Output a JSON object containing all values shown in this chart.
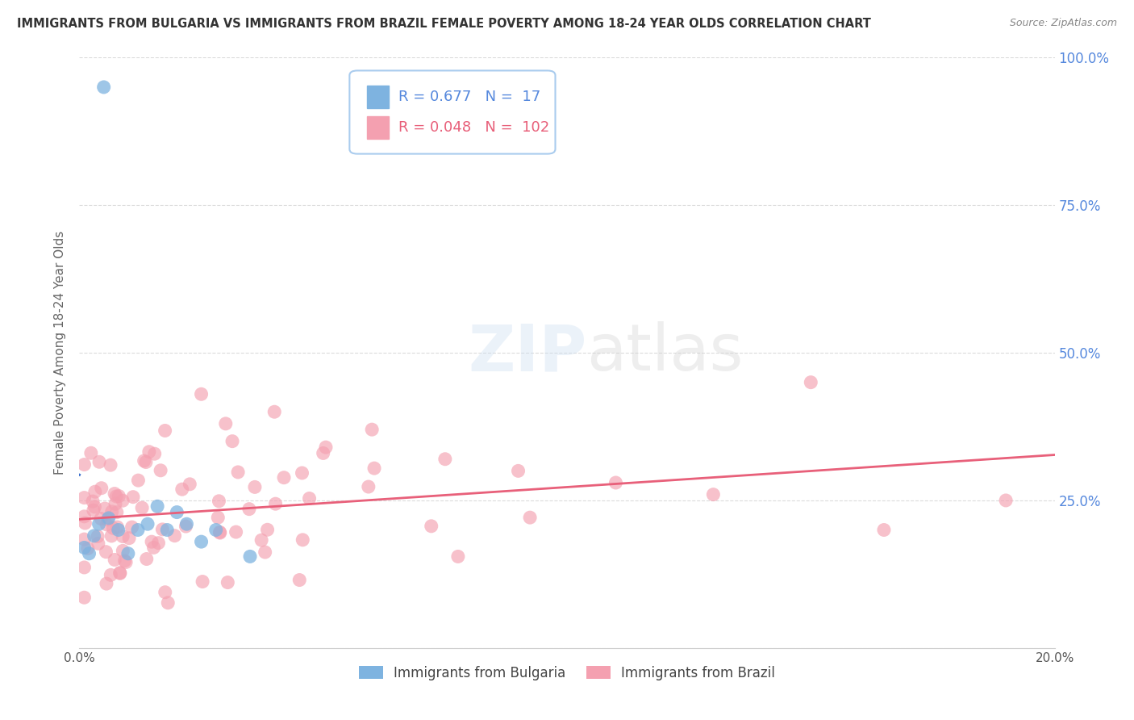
{
  "title": "IMMIGRANTS FROM BULGARIA VS IMMIGRANTS FROM BRAZIL FEMALE POVERTY AMONG 18-24 YEAR OLDS CORRELATION CHART",
  "source": "Source: ZipAtlas.com",
  "ylabel": "Female Poverty Among 18-24 Year Olds",
  "xlim": [
    0.0,
    0.2
  ],
  "ylim": [
    0.0,
    1.0
  ],
  "R_bulgaria": 0.677,
  "N_bulgaria": 17,
  "R_brazil": 0.048,
  "N_brazil": 102,
  "color_bulgaria": "#7EB3E0",
  "color_brazil": "#F4A0B0",
  "color_line_bulgaria": "#3B6FCC",
  "color_line_brazil": "#E8607A",
  "legend_label_bulgaria": "Immigrants from Bulgaria",
  "legend_label_brazil": "Immigrants from Brazil",
  "watermark": "ZIPatlas",
  "bg_color": "#FFFFFF",
  "grid_color": "#CCCCCC",
  "title_color": "#333333",
  "source_color": "#888888",
  "right_axis_color": "#5588DD",
  "axis_label_color": "#666666"
}
